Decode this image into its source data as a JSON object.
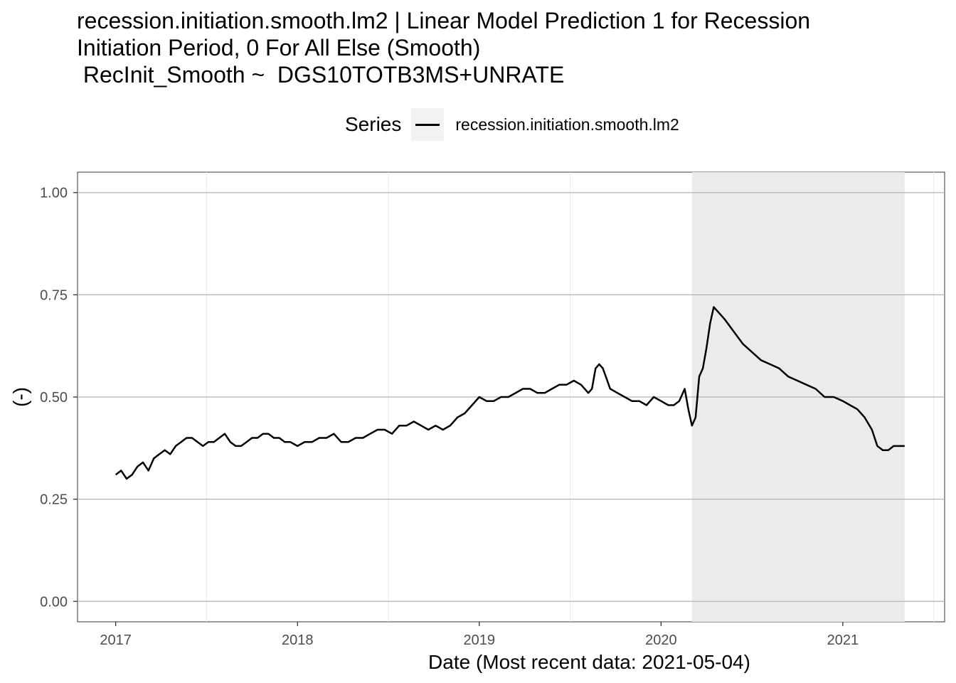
{
  "title": {
    "line1": "recession.initiation.smooth.lm2 | Linear Model Prediction 1 for Recession",
    "line2": "Initiation Period, 0 For All Else (Smooth)",
    "line3": " RecInit_Smooth ~  DGS10TOTB3MS+UNRATE"
  },
  "legend": {
    "title": "Series",
    "label": "recession.initiation.smooth.lm2"
  },
  "chart_data": {
    "type": "line",
    "title": "recession.initiation.smooth.lm2 | Linear Model Prediction 1 for Recession Initiation Period, 0 For All Else (Smooth)",
    "xlabel": "Date (Most recent data: 2021-05-04)",
    "ylabel": "(-)",
    "x_ticks": [
      "2017",
      "2018",
      "2019",
      "2020",
      "2021"
    ],
    "y_ticks": [
      "0.00",
      "0.25",
      "0.50",
      "0.75",
      "1.00"
    ],
    "xlim": [
      2016.79,
      2021.56
    ],
    "ylim": [
      -0.05,
      1.05
    ],
    "grid": "horizontal major",
    "shaded_period": {
      "start": 2020.17,
      "end": 2021.34,
      "color": "#ebebeb"
    },
    "series": [
      {
        "name": "recession.initiation.smooth.lm2",
        "color": "#000000",
        "x": [
          2017.0,
          2017.03,
          2017.06,
          2017.09,
          2017.12,
          2017.15,
          2017.18,
          2017.21,
          2017.24,
          2017.27,
          2017.3,
          2017.33,
          2017.36,
          2017.39,
          2017.42,
          2017.45,
          2017.48,
          2017.51,
          2017.54,
          2017.57,
          2017.6,
          2017.63,
          2017.66,
          2017.69,
          2017.72,
          2017.75,
          2017.78,
          2017.81,
          2017.84,
          2017.87,
          2017.9,
          2017.93,
          2017.96,
          2018.0,
          2018.04,
          2018.08,
          2018.12,
          2018.16,
          2018.2,
          2018.24,
          2018.28,
          2018.32,
          2018.36,
          2018.4,
          2018.44,
          2018.48,
          2018.52,
          2018.56,
          2018.6,
          2018.64,
          2018.68,
          2018.72,
          2018.76,
          2018.8,
          2018.84,
          2018.88,
          2018.92,
          2018.96,
          2019.0,
          2019.04,
          2019.08,
          2019.12,
          2019.16,
          2019.2,
          2019.24,
          2019.28,
          2019.32,
          2019.36,
          2019.4,
          2019.44,
          2019.48,
          2019.52,
          2019.56,
          2019.6,
          2019.62,
          2019.64,
          2019.66,
          2019.68,
          2019.72,
          2019.76,
          2019.8,
          2019.84,
          2019.88,
          2019.92,
          2019.96,
          2020.0,
          2020.04,
          2020.07,
          2020.1,
          2020.13,
          2020.15,
          2020.17,
          2020.19,
          2020.21,
          2020.23,
          2020.25,
          2020.27,
          2020.29,
          2020.31,
          2020.35,
          2020.4,
          2020.45,
          2020.5,
          2020.55,
          2020.6,
          2020.65,
          2020.7,
          2020.75,
          2020.8,
          2020.85,
          2020.9,
          2020.95,
          2021.0,
          2021.04,
          2021.08,
          2021.12,
          2021.16,
          2021.19,
          2021.22,
          2021.25,
          2021.28,
          2021.31,
          2021.34
        ],
        "values": [
          0.31,
          0.32,
          0.3,
          0.31,
          0.33,
          0.34,
          0.32,
          0.35,
          0.36,
          0.37,
          0.36,
          0.38,
          0.39,
          0.4,
          0.4,
          0.39,
          0.38,
          0.39,
          0.39,
          0.4,
          0.41,
          0.39,
          0.38,
          0.38,
          0.39,
          0.4,
          0.4,
          0.41,
          0.41,
          0.4,
          0.4,
          0.39,
          0.39,
          0.38,
          0.39,
          0.39,
          0.4,
          0.4,
          0.41,
          0.39,
          0.39,
          0.4,
          0.4,
          0.41,
          0.42,
          0.42,
          0.41,
          0.43,
          0.43,
          0.44,
          0.43,
          0.42,
          0.43,
          0.42,
          0.43,
          0.45,
          0.46,
          0.48,
          0.5,
          0.49,
          0.49,
          0.5,
          0.5,
          0.51,
          0.52,
          0.52,
          0.51,
          0.51,
          0.52,
          0.53,
          0.53,
          0.54,
          0.53,
          0.51,
          0.52,
          0.57,
          0.58,
          0.57,
          0.52,
          0.51,
          0.5,
          0.49,
          0.49,
          0.48,
          0.5,
          0.49,
          0.48,
          0.48,
          0.49,
          0.52,
          0.47,
          0.43,
          0.45,
          0.55,
          0.57,
          0.62,
          0.68,
          0.72,
          0.71,
          0.69,
          0.66,
          0.63,
          0.61,
          0.59,
          0.58,
          0.57,
          0.55,
          0.54,
          0.53,
          0.52,
          0.5,
          0.5,
          0.49,
          0.48,
          0.47,
          0.45,
          0.42,
          0.38,
          0.37,
          0.37,
          0.38,
          0.38,
          0.38
        ]
      }
    ]
  }
}
